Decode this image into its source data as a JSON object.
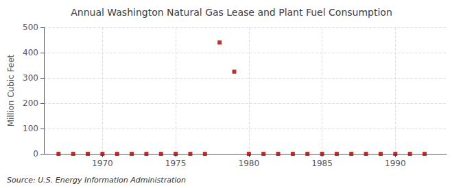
{
  "chart_data": {
    "type": "scatter",
    "title": "Annual Washington Natural Gas Lease and Plant Fuel Consumption",
    "ylabel": "Million Cubic Feet",
    "source": "Source: U.S. Energy Information Administration",
    "x": [
      1967,
      1968,
      1969,
      1970,
      1971,
      1972,
      1973,
      1974,
      1975,
      1976,
      1977,
      1978,
      1979,
      1980,
      1981,
      1982,
      1983,
      1984,
      1985,
      1986,
      1987,
      1988,
      1989,
      1990,
      1991,
      1992
    ],
    "values": [
      0,
      0,
      0,
      0,
      0,
      0,
      0,
      0,
      0,
      0,
      0,
      440,
      325,
      0,
      0,
      0,
      0,
      0,
      0,
      0,
      0,
      0,
      0,
      0,
      0,
      0
    ],
    "color": "#aa0000",
    "marker": "square",
    "xlim": [
      1966.0,
      1993.5
    ],
    "ylim": [
      0,
      500
    ],
    "xticks": [
      1970,
      1975,
      1980,
      1985,
      1990
    ],
    "yticks": [
      0,
      100,
      200,
      300,
      400,
      500
    ],
    "grid": true
  }
}
